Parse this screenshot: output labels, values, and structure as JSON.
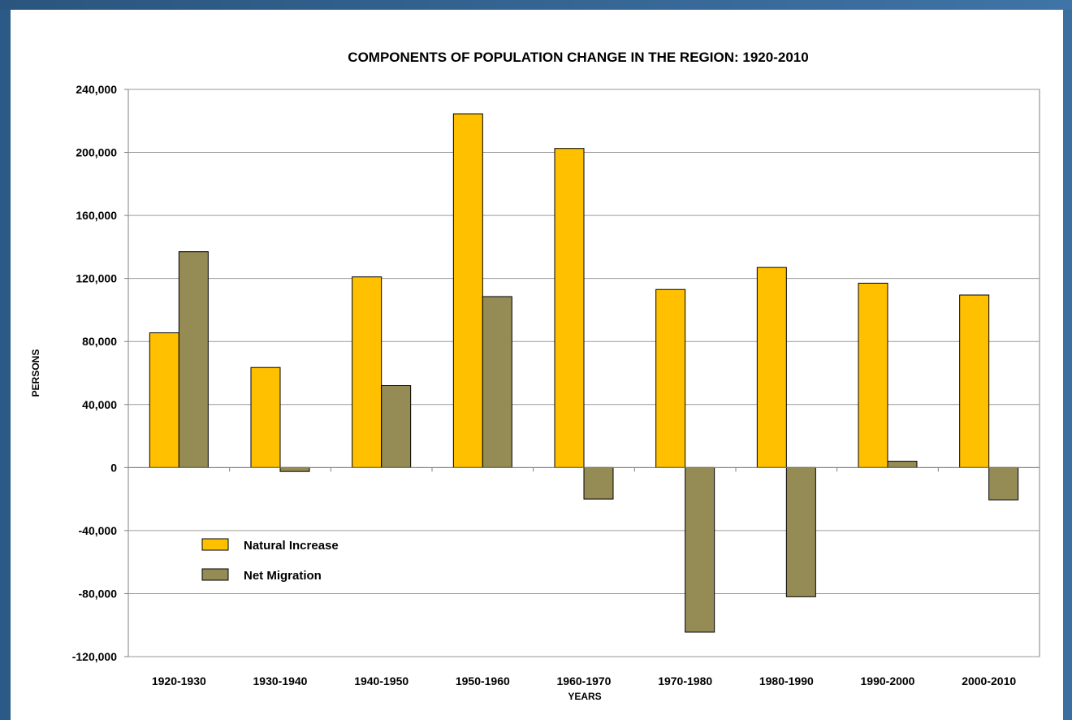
{
  "chart_data": {
    "type": "bar",
    "title": "COMPONENTS OF POPULATION CHANGE IN THE REGION: 1920-2010",
    "xlabel": "YEARS",
    "ylabel": "PERSONS",
    "ylim": [
      -120000,
      240000
    ],
    "yticks": [
      240000,
      200000,
      160000,
      120000,
      80000,
      40000,
      0,
      -40000,
      -80000,
      -120000
    ],
    "ytick_labels": [
      "240,000",
      "200,000",
      "160,000",
      "120,000",
      "80,000",
      "40,000",
      "0",
      "-40,000",
      "-80,000",
      "-120,000"
    ],
    "categories": [
      "1920-1930",
      "1930-1940",
      "1940-1950",
      "1950-1960",
      "1960-1970",
      "1970-1980",
      "1980-1990",
      "1990-2000",
      "2000-2010"
    ],
    "series": [
      {
        "name": "Natural Increase",
        "color": "#ffc000",
        "values": [
          85500,
          63500,
          121000,
          224500,
          202500,
          113000,
          127000,
          117000,
          109500
        ]
      },
      {
        "name": "Net Migration",
        "color": "#958b55",
        "values": [
          137000,
          -2500,
          52000,
          108500,
          -20000,
          -104500,
          -82000,
          4000,
          -20500
        ]
      }
    ],
    "grid": true,
    "legend": "bottom-left inside plot"
  }
}
